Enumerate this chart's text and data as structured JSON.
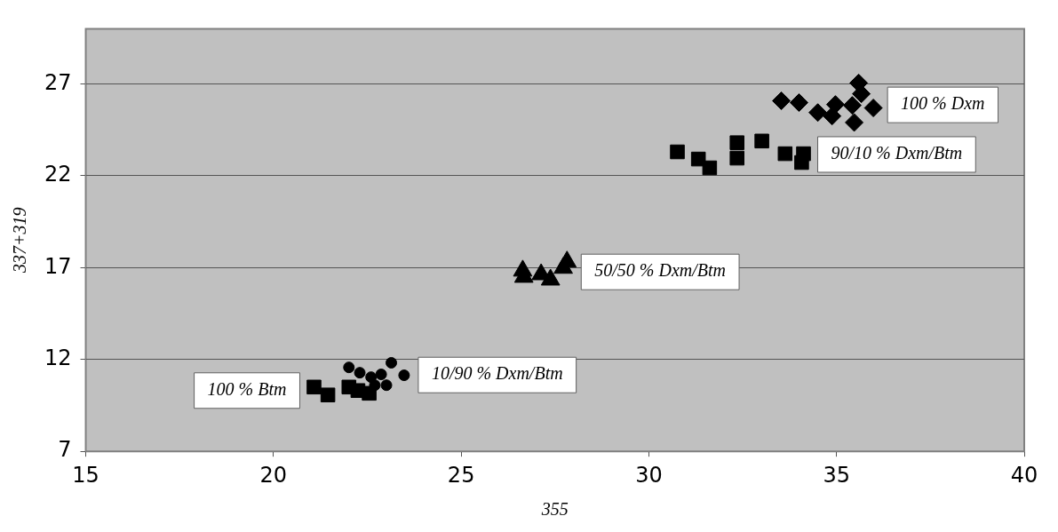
{
  "chart_data": {
    "type": "scatter",
    "xlabel": "355",
    "ylabel": "337+319",
    "xlim": [
      15,
      40
    ],
    "ylim": [
      7,
      30
    ],
    "xticks": [
      15,
      20,
      25,
      30,
      35,
      40
    ],
    "yticks": [
      7,
      12,
      17,
      22,
      27
    ],
    "grid": "y",
    "legend": false,
    "series": [
      {
        "name": "100 % Btm",
        "color": "#000000",
        "marker": "square",
        "x": [
          21.08,
          21.45,
          22.01,
          22.55,
          22.25
        ],
        "values": [
          10.5,
          10.07,
          10.5,
          10.16,
          10.31
        ]
      },
      {
        "name": "10/90 % Dxm/Btm",
        "color": "#000000",
        "marker": "circle",
        "x": [
          22.01,
          22.3,
          22.6,
          22.87,
          23.14,
          23.48,
          22.7,
          23.01
        ],
        "values": [
          11.57,
          11.28,
          11.04,
          11.19,
          11.82,
          11.14,
          10.6,
          10.6
        ]
      },
      {
        "name": "50/50 % Dxm/Btm",
        "color": "#000000",
        "marker": "triangle",
        "x": [
          26.64,
          27.13,
          27.38,
          27.82,
          27.72,
          26.67
        ],
        "values": [
          16.83,
          16.63,
          16.34,
          17.32,
          16.98,
          16.49
        ]
      },
      {
        "name": "90/10 % Dxm/Btm",
        "color": "#000000",
        "marker": "square",
        "x": [
          30.76,
          31.32,
          31.62,
          32.35,
          32.35,
          33.01,
          33.63,
          34.12,
          34.07
        ],
        "values": [
          23.3,
          22.91,
          22.43,
          23.8,
          22.96,
          23.89,
          23.2,
          23.2,
          22.72
        ]
      },
      {
        "name": "100 % Dxm",
        "color": "#000000",
        "marker": "diamond",
        "x": [
          33.53,
          34.0,
          34.5,
          34.97,
          34.88,
          35.42,
          35.59,
          35.66,
          35.47,
          35.98
        ],
        "values": [
          26.08,
          25.98,
          25.44,
          25.88,
          25.25,
          25.83,
          27.05,
          26.46,
          24.9,
          25.69
        ]
      }
    ]
  }
}
